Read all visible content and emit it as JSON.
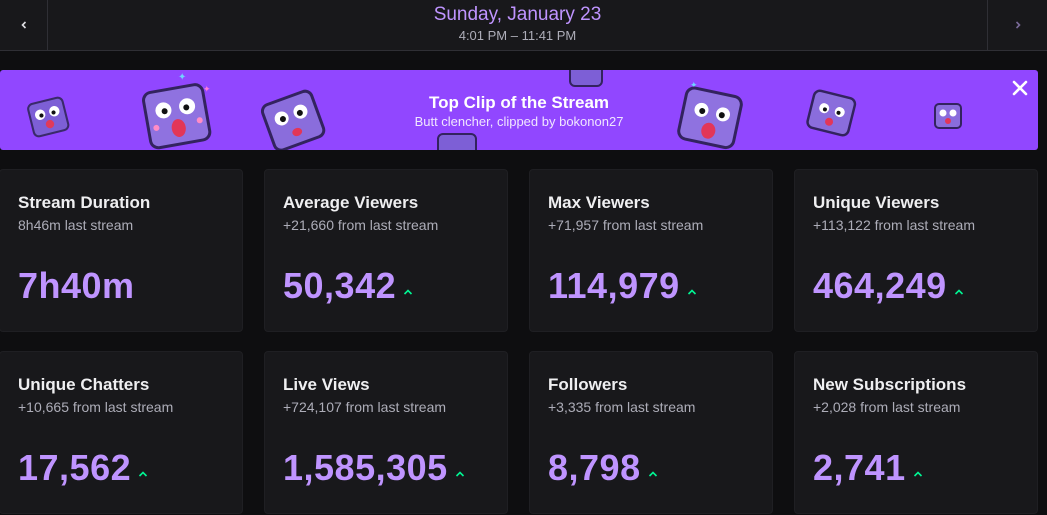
{
  "header": {
    "date": "Sunday, January 23",
    "time_range": "4:01 PM – 11:41 PM",
    "prev_icon": "chevron-left-icon",
    "next_icon": "chevron-right-icon"
  },
  "banner": {
    "title": "Top Clip of the Stream",
    "subtitle": "Butt clencher, clipped by bokonon27",
    "close_icon": "close-icon",
    "decoration": "emote-icon"
  },
  "colors": {
    "accent": "#bf94ff",
    "banner_bg": "#9147ff",
    "trend_up": "#00f593",
    "card_bg": "#18181b"
  },
  "stats": [
    {
      "title": "Stream Duration",
      "sub": "8h46m last stream",
      "value": "7h40m",
      "trend": "none"
    },
    {
      "title": "Average Viewers",
      "sub": "+21,660 from last stream",
      "value": "50,342",
      "trend": "up"
    },
    {
      "title": "Max Viewers",
      "sub": "+71,957 from last stream",
      "value": "114,979",
      "trend": "up"
    },
    {
      "title": "Unique Viewers",
      "sub": "+113,122 from last stream",
      "value": "464,249",
      "trend": "up"
    },
    {
      "title": "Unique Chatters",
      "sub": "+10,665 from last stream",
      "value": "17,562",
      "trend": "up"
    },
    {
      "title": "Live Views",
      "sub": "+724,107 from last stream",
      "value": "1,585,305",
      "trend": "up"
    },
    {
      "title": "Followers",
      "sub": "+3,335 from last stream",
      "value": "8,798",
      "trend": "up"
    },
    {
      "title": "New Subscriptions",
      "sub": "+2,028 from last stream",
      "value": "2,741",
      "trend": "up"
    }
  ]
}
